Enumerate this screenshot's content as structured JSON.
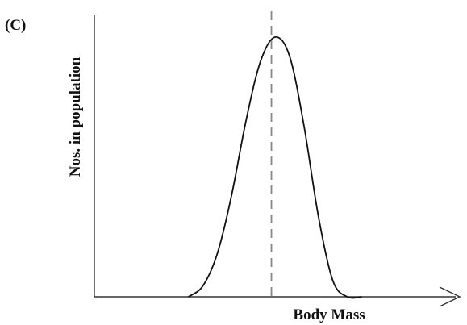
{
  "chart_data": {
    "type": "line",
    "panel_label": "(C)",
    "title": "",
    "xlabel": "Body Mass",
    "ylabel": "Nos. in population",
    "xlim": [
      0,
      10
    ],
    "ylim": [
      0,
      1.0
    ],
    "x_ticks_shown": false,
    "y_ticks_shown": false,
    "grid": false,
    "legend": "none",
    "series": [
      {
        "name": "",
        "distribution": "bell-shaped",
        "x": [
          2.6,
          3.0,
          3.4,
          3.8,
          4.2,
          4.6,
          5.0,
          5.4,
          5.8,
          6.2,
          6.6,
          7.0,
          7.4
        ],
        "values": [
          0.0,
          0.04,
          0.16,
          0.38,
          0.66,
          0.88,
          0.97,
          0.9,
          0.64,
          0.3,
          0.06,
          0.0,
          0.0
        ]
      }
    ],
    "mean_marker": {
      "x": 4.9,
      "style": "dashed",
      "color": "#888888"
    },
    "colors": {
      "curve": "#111111",
      "axis": "#333333",
      "mean": "#888888"
    }
  }
}
